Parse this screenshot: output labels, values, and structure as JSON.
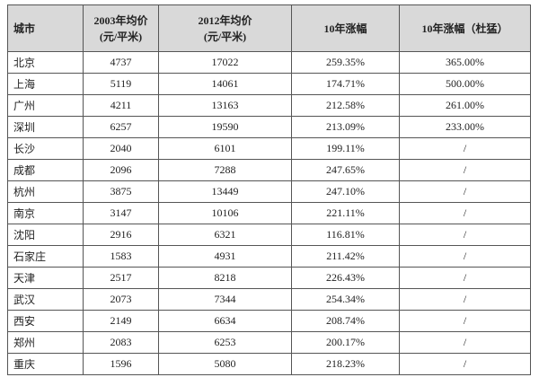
{
  "table": {
    "columns": [
      {
        "title": "城市"
      },
      {
        "title": "2003年均价",
        "unit": "(元/平米)"
      },
      {
        "title": "2012年均价",
        "unit": "(元/平米)"
      },
      {
        "title": "10年涨幅"
      },
      {
        "title": "10年涨幅（杜猛）"
      }
    ],
    "rows": [
      [
        "北京",
        "4737",
        "17022",
        "259.35%",
        "365.00%"
      ],
      [
        "上海",
        "5119",
        "14061",
        "174.71%",
        "500.00%"
      ],
      [
        "广州",
        "4211",
        "13163",
        "212.58%",
        "261.00%"
      ],
      [
        "深圳",
        "6257",
        "19590",
        "213.09%",
        "233.00%"
      ],
      [
        "长沙",
        "2040",
        "6101",
        "199.11%",
        "/"
      ],
      [
        "成都",
        "2096",
        "7288",
        "247.65%",
        "/"
      ],
      [
        "杭州",
        "3875",
        "13449",
        "247.10%",
        "/"
      ],
      [
        "南京",
        "3147",
        "10106",
        "221.11%",
        "/"
      ],
      [
        "沈阳",
        "2916",
        "6321",
        "116.81%",
        "/"
      ],
      [
        "石家庄",
        "1583",
        "4931",
        "211.42%",
        "/"
      ],
      [
        "天津",
        "2517",
        "8218",
        "226.43%",
        "/"
      ],
      [
        "武汉",
        "2073",
        "7344",
        "254.34%",
        "/"
      ],
      [
        "西安",
        "2149",
        "6634",
        "208.74%",
        "/"
      ],
      [
        "郑州",
        "2083",
        "6253",
        "200.17%",
        "/"
      ],
      [
        "重庆",
        "1596",
        "5080",
        "218.23%",
        "/"
      ]
    ]
  }
}
